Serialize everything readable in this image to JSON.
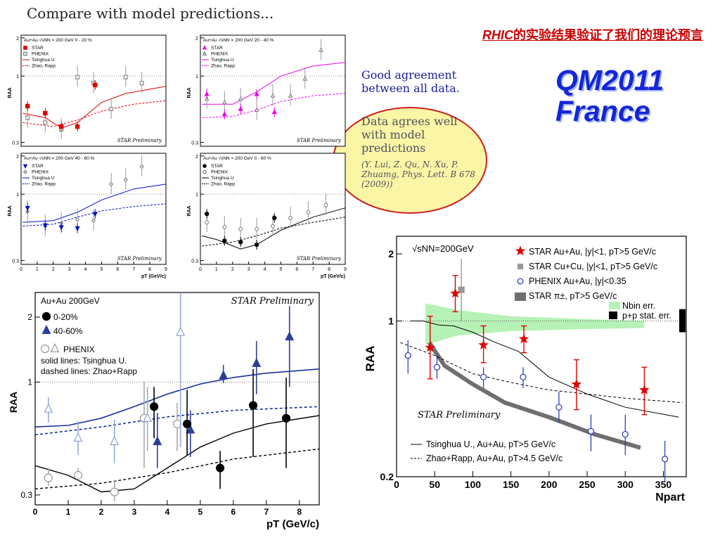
{
  "slide": {
    "title": "Compare with model predictions...",
    "cn_title_latin": "RHIC",
    "cn_title_rest": "的实验结果验证了我们的理论预言",
    "conference": [
      "QM2011",
      "France"
    ],
    "good_agreement": "Good agreement between all data.",
    "data_agrees": "Data agrees well with model predictions",
    "reference": "(Y. Lui, Z. Qu, N. Xu, P. Zhuamg, Phys. Lett. B 678 (2009))"
  },
  "colors": {
    "star_red": "#dd0000",
    "magenta": "#ee00ee",
    "blue": "#0011cc",
    "navy": "#1a2f99",
    "green_band": "#b6f2b6",
    "grey_band": "#6f6f6f"
  },
  "chart_data": [
    {
      "type": "scatter",
      "panel": "small-1",
      "header": "Au+Au   √sNN = 200 GeV   0 - 20 %",
      "legend": [
        "STAR",
        "PHENIX",
        "Tsinghua U",
        "Zhao, Rapp"
      ],
      "watermark": "STAR Preliminary",
      "y_ticks": [
        "2",
        "1",
        "0.3"
      ],
      "ylabel": "RAA",
      "star": [
        [
          0.4,
          0.58
        ],
        [
          1.5,
          0.51
        ],
        [
          2.5,
          0.4
        ],
        [
          3.5,
          0.4
        ],
        [
          4.6,
          0.85
        ]
      ],
      "phenix": [
        [
          0.4,
          0.47
        ],
        [
          1.5,
          0.43
        ],
        [
          2.5,
          0.38
        ],
        [
          3.5,
          0.98
        ],
        [
          4.5,
          0.88
        ],
        [
          5.6,
          0.55
        ],
        [
          6.5,
          0.98
        ],
        [
          7.5,
          0.88
        ]
      ],
      "tsinghua": [
        [
          0.1,
          0.51
        ],
        [
          1.5,
          0.47
        ],
        [
          2.5,
          0.39
        ],
        [
          3.5,
          0.43
        ],
        [
          5,
          0.62
        ],
        [
          6.5,
          0.73
        ],
        [
          9,
          0.83
        ]
      ],
      "zhao": [
        [
          0.1,
          0.43
        ],
        [
          2,
          0.4
        ],
        [
          3.5,
          0.45
        ],
        [
          5,
          0.53
        ],
        [
          7,
          0.6
        ],
        [
          9,
          0.64
        ]
      ]
    },
    {
      "type": "scatter",
      "panel": "small-2",
      "header": "Au+Au   √sNN = 200 GeV   20 - 40 %",
      "legend": [
        "STAR",
        "PHENIX",
        "Tsinghua U",
        "Zhao, Rapp"
      ],
      "watermark": "STAR Preliminary",
      "y_ticks": [
        "2",
        "1",
        "0.3"
      ],
      "ylabel": "RAA",
      "star": [
        [
          0.4,
          0.72
        ],
        [
          1.5,
          0.5
        ],
        [
          2.5,
          0.55
        ],
        [
          3.5,
          0.72
        ],
        [
          4.6,
          0.52
        ]
      ],
      "phenix": [
        [
          0.4,
          0.66
        ],
        [
          1.5,
          0.62
        ],
        [
          2.5,
          0.66
        ],
        [
          3.5,
          0.54
        ],
        [
          4.5,
          0.7
        ],
        [
          5.6,
          0.7
        ],
        [
          6.5,
          0.95
        ],
        [
          7.5,
          1.6
        ]
      ],
      "tsinghua": [
        [
          0.1,
          0.6
        ],
        [
          2,
          0.6
        ],
        [
          3.5,
          0.75
        ],
        [
          5,
          1.0
        ],
        [
          7,
          1.2
        ],
        [
          9,
          1.28
        ]
      ],
      "zhao": [
        [
          0.1,
          0.47
        ],
        [
          2,
          0.48
        ],
        [
          3.5,
          0.54
        ],
        [
          5,
          0.63
        ],
        [
          7,
          0.7
        ],
        [
          9,
          0.73
        ]
      ]
    },
    {
      "type": "scatter",
      "panel": "small-3",
      "header": "Au+Au   √sNN = 200 GeV   40 - 60 %",
      "legend": [
        "STAR",
        "PHENIX",
        "Tsinghua U",
        "Zhao, Rapp"
      ],
      "watermark": "STAR Preliminary",
      "y_ticks": [
        "2",
        "1",
        "0.3"
      ],
      "ylabel": "RAA",
      "x_ticks": [
        "0",
        "1",
        "2",
        "3",
        "4",
        "5",
        "6",
        "7",
        "8",
        "9"
      ],
      "xlabel": "pT (GeV/c)",
      "star": [
        [
          0.4,
          0.78
        ],
        [
          1.5,
          0.57
        ],
        [
          2.5,
          0.55
        ],
        [
          3.5,
          0.54
        ],
        [
          4.6,
          0.7
        ]
      ],
      "phenix": [
        [
          0.4,
          0.73
        ],
        [
          1.5,
          0.56
        ],
        [
          2.5,
          0.59
        ],
        [
          3.5,
          0.63
        ],
        [
          4.5,
          0.62
        ],
        [
          5.6,
          1.2
        ],
        [
          6.5,
          1.3
        ],
        [
          7.5,
          1.65
        ]
      ],
      "tsinghua": [
        [
          0.1,
          0.6
        ],
        [
          2,
          0.62
        ],
        [
          3.5,
          0.72
        ],
        [
          5,
          0.9
        ],
        [
          7,
          1.1
        ],
        [
          9,
          1.2
        ]
      ],
      "zhao": [
        [
          0.1,
          0.56
        ],
        [
          2,
          0.58
        ],
        [
          3.5,
          0.66
        ],
        [
          5,
          0.74
        ],
        [
          7,
          0.8
        ],
        [
          9,
          0.84
        ]
      ]
    },
    {
      "type": "scatter",
      "panel": "small-4",
      "header": "Au+Au   √sNN = 200 GeV   0 - 60 %",
      "legend": [
        "STAR",
        "PHENIX",
        "Tsinghua U",
        "Zhao, Rapp"
      ],
      "watermark": "STAR Preliminary",
      "y_ticks": [
        "2",
        "1",
        "0.3"
      ],
      "ylabel": "RAA",
      "x_ticks": [
        "0",
        "1",
        "2",
        "3",
        "4",
        "5",
        "6",
        "7",
        "8",
        "9"
      ],
      "xlabel": "pT (GeV/c)",
      "star": [
        [
          0.4,
          0.7
        ],
        [
          1.5,
          0.43
        ],
        [
          2.5,
          0.42
        ],
        [
          3.5,
          0.4
        ],
        [
          4.6,
          0.65
        ]
      ],
      "phenix": [
        [
          0.4,
          0.6
        ],
        [
          1.5,
          0.55
        ],
        [
          2.5,
          0.53
        ],
        [
          3.5,
          0.53
        ],
        [
          4.5,
          0.56
        ],
        [
          5.6,
          0.65
        ],
        [
          6.7,
          0.72
        ],
        [
          7.8,
          0.82
        ]
      ],
      "tsinghua": [
        [
          0.1,
          0.47
        ],
        [
          1,
          0.44
        ],
        [
          2.5,
          0.37
        ],
        [
          3.5,
          0.4
        ],
        [
          5,
          0.52
        ],
        [
          7,
          0.66
        ],
        [
          9,
          0.78
        ]
      ],
      "zhao": [
        [
          0.1,
          0.39
        ],
        [
          2,
          0.42
        ],
        [
          3.5,
          0.47
        ],
        [
          5,
          0.54
        ],
        [
          7,
          0.6
        ],
        [
          9,
          0.66
        ]
      ]
    },
    {
      "type": "scatter",
      "panel": "main-pt",
      "title": "Au+Au 200GeV",
      "watermark": "STAR Preliminary",
      "legend": [
        "0-20%",
        "40-60%",
        "PHENIX",
        "solid lines: Tsinghua U.",
        "dashed lines: Zhao+Rapp"
      ],
      "xlabel": "pT (GeV/c)",
      "ylabel": "RAA",
      "x_ticks": [
        "0",
        "1",
        "2",
        "3",
        "4",
        "5",
        "6",
        "7",
        "8"
      ],
      "y_ticks": [
        "2",
        "1",
        "0.3"
      ],
      "xlim": [
        0,
        8.6
      ],
      "ylim": [
        0.27,
        2.6
      ],
      "y_scale": "log",
      "star_0_20": [
        {
          "x": 3.6,
          "y": 0.77,
          "lo": 0.55,
          "hi": 0.95
        },
        {
          "x": 4.6,
          "y": 0.64,
          "lo": 0.46,
          "hi": 0.92
        },
        {
          "x": 5.6,
          "y": 0.4,
          "lo": 0.32,
          "hi": 0.48
        },
        {
          "x": 6.6,
          "y": 0.78,
          "lo": 0.45,
          "hi": 1.15
        },
        {
          "x": 7.6,
          "y": 0.68,
          "lo": 0.4,
          "hi": 1.05
        }
      ],
      "star_40_60": [
        {
          "x": 3.7,
          "y": 0.53,
          "lo": 0.4,
          "hi": 0.72
        },
        {
          "x": 4.7,
          "y": 0.6,
          "lo": 0.45,
          "hi": 0.74
        },
        {
          "x": 5.7,
          "y": 1.07,
          "lo": 0.99,
          "hi": 1.2
        },
        {
          "x": 6.7,
          "y": 1.22,
          "lo": 0.88,
          "hi": 1.55
        },
        {
          "x": 7.7,
          "y": 1.62,
          "lo": 0.95,
          "hi": 2.25
        }
      ],
      "phenix_0_20": [
        {
          "x": 0.4,
          "y": 0.36,
          "lo": 0.33,
          "hi": 0.4
        },
        {
          "x": 1.3,
          "y": 0.37,
          "lo": 0.35,
          "hi": 0.4
        },
        {
          "x": 2.4,
          "y": 0.31,
          "lo": 0.28,
          "hi": 0.35
        },
        {
          "x": 3.3,
          "y": 0.68,
          "lo": 0.4,
          "hi": 1.0
        },
        {
          "x": 4.3,
          "y": 0.64,
          "lo": 0.48,
          "hi": 0.8
        }
      ],
      "phenix_40_60": [
        {
          "x": 0.4,
          "y": 0.75,
          "lo": 0.65,
          "hi": 0.85
        },
        {
          "x": 1.3,
          "y": 0.55,
          "lo": 0.46,
          "hi": 0.66
        },
        {
          "x": 2.4,
          "y": 0.53,
          "lo": 0.42,
          "hi": 0.67
        },
        {
          "x": 3.4,
          "y": 0.68,
          "lo": 0.48,
          "hi": 0.95
        },
        {
          "x": 4.4,
          "y": 1.7,
          "lo": 0.5,
          "hi": 2.6
        }
      ],
      "tsinghua_0_20": [
        {
          "x": 0,
          "y": 0.41
        },
        {
          "x": 1,
          "y": 0.37
        },
        {
          "x": 2,
          "y": 0.31
        },
        {
          "x": 3,
          "y": 0.32
        },
        {
          "x": 4,
          "y": 0.4
        },
        {
          "x": 5,
          "y": 0.5
        },
        {
          "x": 6,
          "y": 0.58
        },
        {
          "x": 7,
          "y": 0.64
        },
        {
          "x": 8.6,
          "y": 0.7
        }
      ],
      "tsinghua_40_60": [
        {
          "x": 0,
          "y": 0.62
        },
        {
          "x": 1,
          "y": 0.63
        },
        {
          "x": 2,
          "y": 0.68
        },
        {
          "x": 3,
          "y": 0.77
        },
        {
          "x": 4,
          "y": 0.88
        },
        {
          "x": 5,
          "y": 0.98
        },
        {
          "x": 6,
          "y": 1.05
        },
        {
          "x": 7,
          "y": 1.1
        },
        {
          "x": 8.6,
          "y": 1.15
        }
      ],
      "zhao_0_20": [
        {
          "x": 0,
          "y": 0.32
        },
        {
          "x": 2,
          "y": 0.34
        },
        {
          "x": 4,
          "y": 0.38
        },
        {
          "x": 6,
          "y": 0.44
        },
        {
          "x": 8.6,
          "y": 0.49
        }
      ],
      "zhao_40_60": [
        {
          "x": 0,
          "y": 0.57
        },
        {
          "x": 2,
          "y": 0.62
        },
        {
          "x": 4,
          "y": 0.69
        },
        {
          "x": 6,
          "y": 0.74
        },
        {
          "x": 8.6,
          "y": 0.77
        }
      ]
    },
    {
      "type": "scatter",
      "panel": "main-npart",
      "title": "√sNN=200GeV",
      "watermark": "STAR Preliminary",
      "legend": [
        "STAR Au+Au, |y|<1, pT>5 GeV/c",
        "STAR Cu+Cu, |y|<1, pT>5 GeV/c",
        "PHENIX Au+Au, |y|<0.35",
        "STAR π±, pT>5 GeV/c",
        "Nbin err.",
        "p+p stat. err.",
        "Tsinghua U., Au+Au, pT>5 GeV/c",
        "Zhao+Rapp, Au+Au, pT>4.5 GeV/c"
      ],
      "xlabel": "Npart",
      "ylabel": "RAA",
      "x_ticks": [
        "0",
        "50",
        "100",
        "150",
        "200",
        "250",
        "300",
        "350"
      ],
      "y_ticks": [
        "2",
        "1",
        "0.2"
      ],
      "xlim": [
        0,
        380
      ],
      "ylim": [
        0.2,
        2.4
      ],
      "y_scale": "log",
      "star_auau": [
        {
          "x": 44,
          "y": 0.76,
          "lo": 0.55,
          "hi": 1.05
        },
        {
          "x": 77,
          "y": 1.33,
          "lo": 1.1,
          "hi": 1.6
        },
        {
          "x": 114,
          "y": 0.78,
          "lo": 0.65,
          "hi": 0.95
        },
        {
          "x": 167,
          "y": 0.83,
          "lo": 0.72,
          "hi": 0.95
        },
        {
          "x": 236,
          "y": 0.52,
          "lo": 0.4,
          "hi": 0.67
        },
        {
          "x": 325,
          "y": 0.49,
          "lo": 0.38,
          "hi": 0.62
        }
      ],
      "star_cucu": [
        {
          "x": 85,
          "y": 1.38,
          "lo": 1.0,
          "hi": 1.9
        }
      ],
      "phenix": [
        {
          "x": 15,
          "y": 0.7,
          "lo": 0.58,
          "hi": 0.82
        },
        {
          "x": 53,
          "y": 0.62,
          "lo": 0.55,
          "hi": 0.7
        },
        {
          "x": 114,
          "y": 0.56,
          "lo": 0.5,
          "hi": 0.62
        },
        {
          "x": 166,
          "y": 0.56,
          "lo": 0.5,
          "hi": 0.62
        },
        {
          "x": 213,
          "y": 0.41,
          "lo": 0.35,
          "hi": 0.48
        },
        {
          "x": 255,
          "y": 0.32,
          "lo": 0.26,
          "hi": 0.38
        },
        {
          "x": 300,
          "y": 0.31,
          "lo": 0.25,
          "hi": 0.38
        },
        {
          "x": 352,
          "y": 0.24,
          "lo": 0.19,
          "hi": 0.29
        }
      ],
      "star_pion_band": [
        {
          "x": 43,
          "y": 0.8
        },
        {
          "x": 63,
          "y": 0.63
        },
        {
          "x": 100,
          "y": 0.52
        },
        {
          "x": 142,
          "y": 0.43
        },
        {
          "x": 200,
          "y": 0.37
        },
        {
          "x": 260,
          "y": 0.31
        },
        {
          "x": 320,
          "y": 0.27
        }
      ],
      "nbin_band": [
        {
          "x": 38,
          "lo": 0.78,
          "hi": 1.2
        },
        {
          "x": 80,
          "lo": 0.86,
          "hi": 1.12
        },
        {
          "x": 150,
          "lo": 0.9,
          "hi": 1.05
        },
        {
          "x": 250,
          "lo": 0.92,
          "hi": 1.02
        },
        {
          "x": 325,
          "lo": 0.93,
          "hi": 1.0
        }
      ],
      "tsinghua": [
        {
          "x": 18,
          "y": 1.0
        },
        {
          "x": 35,
          "y": 1.0
        },
        {
          "x": 55,
          "y": 0.96
        },
        {
          "x": 75,
          "y": 0.95
        },
        {
          "x": 100,
          "y": 0.89
        },
        {
          "x": 130,
          "y": 0.8
        },
        {
          "x": 160,
          "y": 0.73
        },
        {
          "x": 200,
          "y": 0.56
        },
        {
          "x": 250,
          "y": 0.47
        },
        {
          "x": 300,
          "y": 0.41
        },
        {
          "x": 370,
          "y": 0.37
        }
      ],
      "zhao": [
        {
          "x": 5,
          "y": 0.8
        },
        {
          "x": 50,
          "y": 0.7
        },
        {
          "x": 100,
          "y": 0.58
        },
        {
          "x": 150,
          "y": 0.53
        },
        {
          "x": 200,
          "y": 0.49
        },
        {
          "x": 250,
          "y": 0.47
        },
        {
          "x": 300,
          "y": 0.45
        },
        {
          "x": 375,
          "y": 0.43
        }
      ]
    }
  ]
}
